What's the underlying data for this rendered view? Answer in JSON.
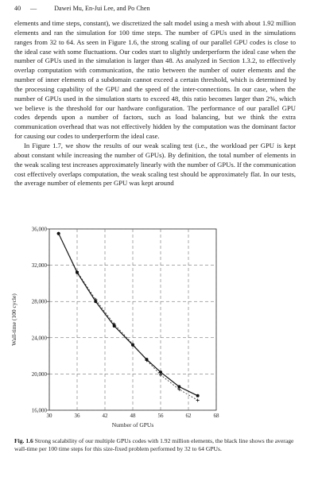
{
  "header": {
    "page_number": "40",
    "separator": "—",
    "authors": "Dawei Mu, En-Jui Lee, and Po Chen"
  },
  "paragraphs": [
    "elements and time steps, constant), we discretized the salt model using a mesh with about 1.92 million elements and ran the simulation for 100 time steps. The number of GPUs used in the simulations ranges from 32 to 64. As seen in Figure 1.6, the strong scaling of our parallel GPU codes is close to the ideal case with some fluctuations. Our codes start to slightly underperform the ideal case when the number of GPUs used in the simulation is larger than 48. As analyzed in Section 1.3.2, to effectively overlap computation with communication, the ratio between the number of outer elements and the number of inner elements of a subdomain cannot exceed a certain threshold, which is determined by the processing capability of the GPU and the speed of the inter-connections. In our case, when the number of GPUs used in the simulation starts to exceed 48, this ratio becomes larger than 2%, which we believe is the threshold for our hardware configuration. The performance of our parallel GPU codes depends upon a number of factors, such as load balancing, but we think the extra communication overhead that was not effectively hidden by the computation was the dominant factor for causing our codes to underperform the ideal case.",
    "In Figure 1.7, we show the results of our weak scaling test (i.e., the workload per GPU is kept about constant while increasing the number of GPUs). By definition, the total number of elements in the weak scaling test increases approximately linearly with the number of GPUs. If the communication cost effectively overlaps computation, the weak scaling test should be approximately flat. In our tests, the average number of elements per GPU was kept around"
  ],
  "caption": {
    "label": "Fig. 1.6",
    "text": "Strong scalability of our multiple GPUs codes with 1.92 million elements, the black line shows the average wall-time per 100 time steps for this size-fixed problem performed by 32 to 64 GPUs."
  },
  "chart_data": {
    "type": "line",
    "xlabel": "Number of GPUs",
    "ylabel": "Wall-time (100 cycle)",
    "xlim": [
      30,
      70
    ],
    "ylim": [
      16000,
      36000
    ],
    "x_ticks": [
      "30",
      "36",
      "42",
      "48",
      "56",
      "62",
      "68"
    ],
    "x_tick_values": [
      30,
      36,
      42,
      48,
      56,
      62,
      68
    ],
    "y_ticks": [
      "16,000",
      "20,000",
      "24,000",
      "28,000",
      "32,000",
      "36,000"
    ],
    "y_tick_values": [
      16000,
      20000,
      24000,
      28000,
      32000,
      36000
    ],
    "grid": "dashed",
    "series": [
      {
        "style": "solid-black-dots",
        "x": [
          32,
          36,
          40,
          44,
          48,
          52,
          56,
          60,
          64
        ],
        "y": [
          35500,
          31200,
          28000,
          25300,
          23200,
          21600,
          20200,
          18600,
          17600
        ]
      },
      {
        "style": "dashed-ideal-plus",
        "x": [
          32,
          36,
          40,
          44,
          48,
          52,
          56,
          60,
          64
        ],
        "y": [
          35500,
          31300,
          28200,
          25500,
          23300,
          21500,
          19900,
          18300,
          17100
        ]
      }
    ]
  }
}
